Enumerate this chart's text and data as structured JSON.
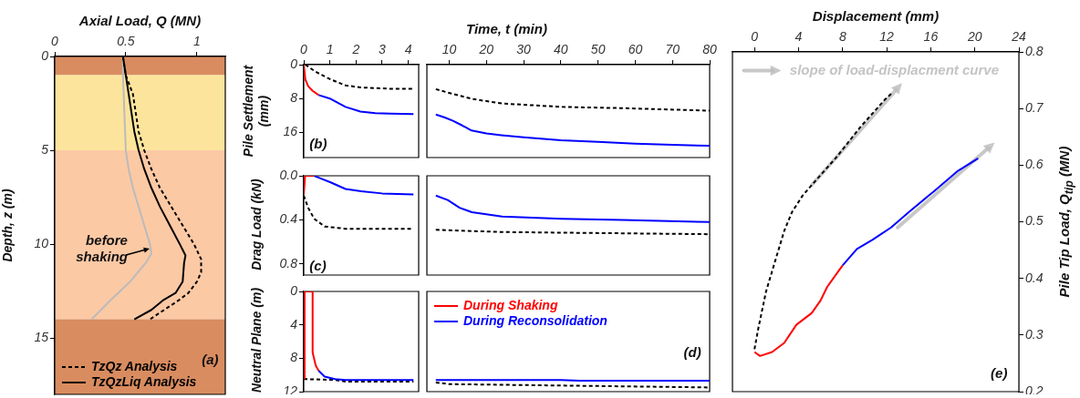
{
  "chart_data": [
    {
      "type": "line",
      "xlabel": "Axial Load, Q (MN)",
      "ylabel": "Depth, z (m)",
      "xlim": [
        0,
        1.2
      ],
      "xticks": [
        0,
        0.5,
        1
      ],
      "ylim": [
        18,
        0
      ],
      "yticks": [
        0,
        5,
        10,
        15
      ],
      "marker": "none",
      "legend": "bottom left",
      "bands": [
        {
          "axis": "y",
          "from": 0,
          "to": 1,
          "color": "#d98c5f"
        },
        {
          "axis": "y",
          "from": 1,
          "to": 5,
          "color": "#fde49c"
        },
        {
          "axis": "y",
          "from": 5,
          "to": 14,
          "color": "#fcc9a5"
        },
        {
          "axis": "y",
          "from": 14,
          "to": 18,
          "color": "#d98c5f"
        }
      ],
      "annotations": [
        "(a)",
        {
          "text": "before shaking",
          "x": 0.68,
          "y": 10.3
        }
      ],
      "series": [
        {
          "name": "TzQz Analysis",
          "color": "#000000",
          "line_style": "dashed",
          "x": [
            0.48,
            0.5,
            0.55,
            0.57,
            0.59,
            0.63,
            0.68,
            0.74,
            0.82,
            0.9,
            0.98,
            1.03,
            1.03,
            1.0,
            0.94,
            0.87,
            0.67
          ],
          "values": [
            0,
            1,
            2,
            3,
            4,
            5,
            6,
            7,
            8,
            9,
            10,
            10.8,
            11.5,
            12,
            12.6,
            13,
            14
          ]
        },
        {
          "name": "TzQzLiq Analysis",
          "color": "#000000",
          "x": [
            0.48,
            0.5,
            0.52,
            0.54,
            0.56,
            0.59,
            0.63,
            0.68,
            0.74,
            0.81,
            0.88,
            0.92,
            0.91,
            0.9,
            0.85,
            0.76,
            0.68,
            0.56
          ],
          "values": [
            0,
            1,
            2,
            3,
            4,
            5,
            6,
            7,
            8,
            9,
            10,
            10.6,
            11,
            12,
            12.6,
            13,
            13.5,
            14
          ]
        },
        {
          "color": "#bbbbbb",
          "x": [
            0.48,
            0.48,
            0.49,
            0.5,
            0.52,
            0.55,
            0.59,
            0.63,
            0.67,
            0.68,
            0.64,
            0.53,
            0.39,
            0.26
          ],
          "values": [
            0,
            1,
            3,
            5,
            6,
            7,
            8,
            9,
            10,
            10.5,
            11,
            12,
            13,
            14
          ]
        }
      ]
    },
    {
      "type": "line",
      "xlabel": "Time, t (min)",
      "ylabel": "Pile Settlement (mm)",
      "xlim": [
        0,
        4.4
      ],
      "xticks": [
        0,
        1,
        2,
        3,
        4
      ],
      "ylim": [
        22,
        0
      ],
      "yticks": [
        0,
        8,
        16
      ],
      "marker": "none",
      "annotations": [
        "(b)"
      ],
      "series": [
        {
          "color": "#ff0000",
          "x": [
            0,
            0.06,
            0.17,
            0.34,
            0.57
          ],
          "values": [
            0,
            3.5,
            5.1,
            6.2,
            7.2
          ]
        },
        {
          "color": "#0000ff",
          "x": [
            0.57,
            1.03,
            1.6,
            2.17,
            2.74,
            3.31,
            4.2
          ],
          "values": [
            7.2,
            8.1,
            10.0,
            11.1,
            11.5,
            11.6,
            11.7
          ]
        },
        {
          "color": "#000000",
          "line_style": "dashed",
          "x": [
            0.06,
            0.46,
            1.03,
            1.6,
            2.17,
            3.31,
            4.2
          ],
          "values": [
            0,
            1.7,
            3.5,
            4.9,
            5.4,
            5.7,
            5.7
          ]
        }
      ]
    },
    {
      "type": "line",
      "xlim": [
        4,
        80
      ],
      "xticks": [
        10,
        20,
        30,
        40,
        50,
        60,
        70,
        80
      ],
      "ylim": [
        22,
        0
      ],
      "marker": "none",
      "tick_labels": "x",
      "series": [
        {
          "color": "#0000ff",
          "x": [
            6.4,
            8.8,
            11,
            13.5,
            16,
            20,
            24,
            30,
            40,
            50,
            60,
            70,
            80
          ],
          "values": [
            11.8,
            12.5,
            13.3,
            14.4,
            15.6,
            16.3,
            16.7,
            17.2,
            17.9,
            18.3,
            18.7,
            19.0,
            19.2
          ]
        },
        {
          "color": "#000000",
          "line_style": "dashed",
          "x": [
            6.4,
            9.6,
            16.1,
            24.2,
            40.3,
            56.5,
            80
          ],
          "values": [
            5.8,
            6.6,
            8.1,
            9.2,
            10.0,
            10.3,
            10.9
          ]
        }
      ]
    },
    {
      "type": "line",
      "ylabel": "Drag Load (kN)",
      "xlim": [
        0,
        4.4
      ],
      "xticks": [
        0,
        1,
        2,
        3,
        4
      ],
      "ylim": [
        0.9,
        0
      ],
      "yticks": [
        {
          "value": 0,
          "label": "0.0"
        },
        0.4,
        0.8
      ],
      "marker": "none",
      "tick_labels": "y",
      "annotations": [
        "(c)"
      ],
      "series": [
        {
          "color": "#ff0000",
          "x": [
            0,
            0.05,
            0.4
          ],
          "values": [
            0.17,
            0,
            0
          ]
        },
        {
          "color": "#0000ff",
          "x": [
            0.4,
            0.6,
            1.03,
            1.6,
            2.2,
            3.0,
            4.2
          ],
          "values": [
            0,
            0.02,
            0.06,
            0.12,
            0.14,
            0.16,
            0.17
          ]
        },
        {
          "color": "#000000",
          "line_style": "dashed",
          "x": [
            0,
            0.17,
            0.4,
            0.8,
            1.6,
            4.2
          ],
          "values": [
            0.18,
            0.29,
            0.39,
            0.46,
            0.48,
            0.48
          ]
        }
      ]
    },
    {
      "type": "line",
      "xlim": [
        4,
        80
      ],
      "xticks": [
        10,
        20,
        30,
        40,
        50,
        60,
        70,
        80
      ],
      "ylim": [
        0.9,
        0
      ],
      "marker": "none",
      "tick_labels": false,
      "series": [
        {
          "color": "#0000ff",
          "x": [
            6.4,
            9.6,
            12.8,
            16.1,
            24.2,
            40.3,
            56.5,
            80
          ],
          "values": [
            0.18,
            0.22,
            0.29,
            0.33,
            0.37,
            0.39,
            0.4,
            0.42
          ]
        },
        {
          "color": "#000000",
          "line_style": "dashed",
          "x": [
            6.4,
            24.2,
            80
          ],
          "values": [
            0.49,
            0.51,
            0.53
          ]
        }
      ]
    },
    {
      "type": "line",
      "ylabel": "Neutral Plane (m)",
      "xlim": [
        0,
        4.4
      ],
      "xticks": [
        0,
        1,
        2,
        3,
        4
      ],
      "ylim": [
        12,
        0
      ],
      "yticks": [
        0,
        4,
        8,
        12
      ],
      "marker": "none",
      "tick_labels": "y",
      "series": [
        {
          "color": "#ff0000",
          "x": [
            0.03,
            0.03,
            0.34,
            0.34,
            0.46,
            0.57
          ],
          "values": [
            10.5,
            0,
            0,
            7.3,
            8.9,
            9.5
          ]
        },
        {
          "color": "#0000ff",
          "x": [
            0.57,
            0.8,
            1.2,
            1.6,
            4.2
          ],
          "values": [
            9.5,
            10.2,
            10.5,
            10.6,
            10.6
          ]
        },
        {
          "color": "#000000",
          "line_style": "dashed",
          "x": [
            0,
            1.2,
            1.6,
            4.2
          ],
          "values": [
            10.5,
            10.6,
            10.8,
            10.8
          ]
        }
      ]
    },
    {
      "type": "line",
      "xlim": [
        4,
        80
      ],
      "xticks": [
        10,
        20,
        30,
        40,
        50,
        60,
        70,
        80
      ],
      "ylim": [
        12,
        0
      ],
      "marker": "none",
      "tick_labels": false,
      "legend": "top left",
      "annotations": [
        "(d)"
      ],
      "series": [
        {
          "name": "During Shaking",
          "color": "#ff0000"
        },
        {
          "name": "During Reconsolidation",
          "color": "#0000ff",
          "x": [
            6.4,
            40,
            45,
            80
          ],
          "values": [
            10.6,
            10.6,
            10.7,
            10.7
          ]
        },
        {
          "color": "#000000",
          "line_style": "dashed",
          "x": [
            6.4,
            10,
            80
          ],
          "values": [
            10.9,
            11.1,
            11.5
          ]
        }
      ]
    },
    {
      "type": "line",
      "xlabel": "Displacement (mm)",
      "y2label": "Pile Tip Load, Q$_{tip}$ (MN)",
      "xlim": [
        -2,
        24
      ],
      "xticks": [
        0,
        4,
        8,
        12,
        16,
        20,
        24
      ],
      "y2lim": [
        0.2,
        0.8
      ],
      "y2ticks": [
        0.2,
        0.3,
        0.4,
        0.5,
        0.6,
        0.7,
        0.8
      ],
      "marker": "none",
      "annotations": [
        "slope of load-displacment curve",
        "(e)"
      ],
      "series": [
        {
          "color": "#000000",
          "line_style": "dashed",
          "axis": "y2",
          "x": [
            0,
            0.36,
            1.05,
            1.88,
            2.7,
            3.4,
            4.36,
            5.2,
            7.4,
            9.6,
            11.8,
            12.4
          ],
          "values": [
            0.275,
            0.313,
            0.377,
            0.431,
            0.484,
            0.517,
            0.546,
            0.565,
            0.613,
            0.667,
            0.715,
            0.726
          ]
        },
        {
          "color": "#ff0000",
          "axis": "y2",
          "x": [
            0,
            0.5,
            1.6,
            2.7,
            3.8,
            5.2,
            6.0,
            6.6,
            7.3,
            8.0
          ],
          "values": [
            0.27,
            0.263,
            0.27,
            0.286,
            0.318,
            0.339,
            0.361,
            0.385,
            0.404,
            0.423
          ]
        },
        {
          "color": "#0000ff",
          "axis": "y2",
          "x": [
            8.0,
            9.3,
            10.7,
            12.4,
            14.0,
            16.3,
            18.4,
            20.3
          ],
          "values": [
            0.423,
            0.452,
            0.468,
            0.49,
            0.517,
            0.554,
            0.589,
            0.612
          ]
        }
      ]
    }
  ]
}
